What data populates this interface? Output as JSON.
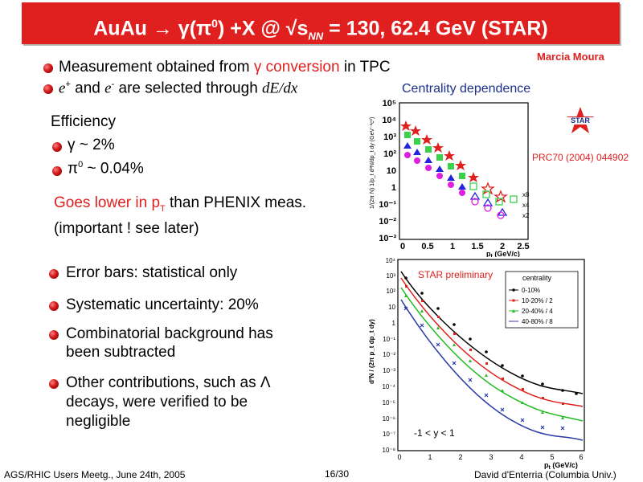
{
  "header": {
    "title_prefix": "AuAu → γ(π",
    "title_sup": "0",
    "title_mid": ") +X @ √s",
    "title_sub": "NN",
    "title_suffix": " = 130, 62.4 GeV (STAR)",
    "author": "Marcia Moura"
  },
  "left": {
    "bullet1": {
      "pre": "Measurement obtained from ",
      "highlight": "γ conversion",
      "post": " in TPC"
    },
    "bullet2": {
      "e_plus": "e",
      "sup_plus": "+",
      "mid": " and ",
      "e_minus": "e",
      "sup_minus": "-",
      "post": " are selected through ",
      "dedx": "dE/dx"
    },
    "efficiency_label": "Efficiency",
    "eff_gamma": "γ ~ 2%",
    "eff_pi_sym": "π",
    "eff_pi_sup": "0",
    "eff_pi_val": " ~ 0.04%",
    "note1_pre": "Goes lower in p",
    "note1_sub": "T",
    "note1_post": " than PHENIX meas.",
    "note2": "(important ! see later)",
    "points": [
      "Error bars: statistical only",
      "Systematic uncertainty: 20%",
      "Combinatorial background has",
      "been subtracted",
      "Other contributions, such as Λ",
      "decays, were verified to be",
      "negligible"
    ]
  },
  "right": {
    "centrality_title": "Centrality dependence",
    "reference": "PRC70 (2004) 044902",
    "star_logo": "STAR",
    "plot1": {
      "ylabel": "1/(2π N) 1/p_t d²N/dp_t dy (GeV⁻²c²)",
      "xlabel": "p",
      "xlabel_sub": "t",
      "xlabel_unit": " (GeV/c)",
      "yticks": [
        "10⁻³",
        "10⁻²",
        "10⁻¹",
        "1",
        "10",
        "10²",
        "10³",
        "10⁴",
        "10⁵"
      ],
      "xticks": [
        "0",
        "0.5",
        "1",
        "1.5",
        "2",
        "2.5"
      ],
      "scale_labels": [
        "x8",
        "x4",
        "x2"
      ]
    },
    "plot2": {
      "label": "STAR preliminary",
      "ylabel": "d²N / (2π p_t dp_t dy)",
      "xlabel": "p",
      "xlabel_sub": "t",
      "xlabel_unit": " (GeV/c)",
      "rapidity": "-1 < y < 1",
      "legend_title": "centrality",
      "legend": [
        {
          "name": "0-10%",
          "color": "#000000"
        },
        {
          "name": "10-20% / 2",
          "color": "#e0201e"
        },
        {
          "name": "20-40% / 4",
          "color": "#22bb22"
        },
        {
          "name": "40-80% / 8",
          "color": "#2a3aa8"
        }
      ],
      "yticks": [
        "10⁻⁸",
        "10⁻⁷",
        "10⁻⁶",
        "10⁻⁵",
        "10⁻⁴",
        "10⁻³",
        "10⁻²",
        "10⁻¹",
        "1",
        "10",
        "10²",
        "10³",
        "10⁴"
      ],
      "xticks": [
        "0",
        "1",
        "2",
        "3",
        "4",
        "5",
        "6"
      ]
    }
  },
  "footer": {
    "left": "AGS/RHIC Users Meetg., June 24th, 2005",
    "center": "16/30",
    "right": "David d'Enterria (Columbia Univ.)"
  },
  "colors": {
    "accent": "#e0201e",
    "blue_title": "#1c2f8c"
  }
}
